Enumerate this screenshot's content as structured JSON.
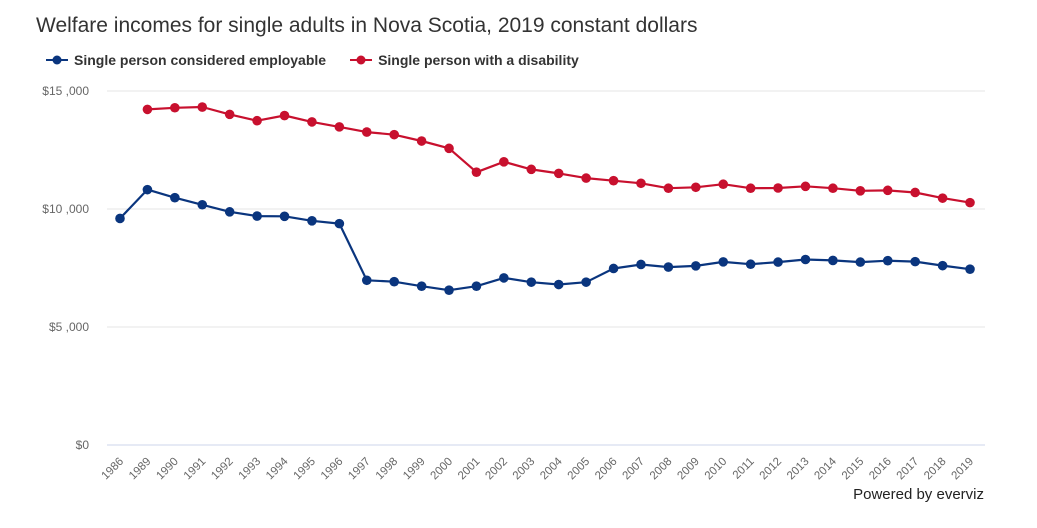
{
  "chart_data": {
    "type": "line",
    "title": "Welfare incomes for single adults in Nova Scotia, 2019 constant dollars",
    "xlabel": "",
    "ylabel": "",
    "categories": [
      "1986",
      "1989",
      "1990",
      "1991",
      "1992",
      "1993",
      "1994",
      "1995",
      "1996",
      "1997",
      "1998",
      "1999",
      "2000",
      "2001",
      "2002",
      "2003",
      "2004",
      "2005",
      "2006",
      "2007",
      "2008",
      "2009",
      "2010",
      "2011",
      "2012",
      "2013",
      "2014",
      "2015",
      "2016",
      "2017",
      "2018",
      "2019"
    ],
    "ylim": [
      0,
      15000
    ],
    "yticks": [
      0,
      5000,
      10000,
      15000
    ],
    "ytick_labels": [
      "$0",
      "$5 ,000",
      "$10 ,000",
      "$15 ,000"
    ],
    "grid": true,
    "legend_position": "top-left",
    "series": [
      {
        "name": "Single person considered employable",
        "color": "#0a357e",
        "values": [
          9600,
          10820,
          10480,
          10180,
          9880,
          9700,
          9690,
          9500,
          9380,
          6980,
          6920,
          6730,
          6560,
          6730,
          7080,
          6900,
          6800,
          6900,
          7480,
          7650,
          7540,
          7590,
          7760,
          7660,
          7750,
          7860,
          7820,
          7750,
          7810,
          7770,
          7600,
          7450
        ]
      },
      {
        "name": "Single person with a disability",
        "color": "#c8102e",
        "values": [
          null,
          14220,
          14290,
          14320,
          14010,
          13740,
          13960,
          13690,
          13480,
          13260,
          13150,
          12880,
          12570,
          11560,
          12000,
          11680,
          11510,
          11310,
          11200,
          11090,
          10880,
          10920,
          11050,
          10880,
          10890,
          10960,
          10880,
          10770,
          10790,
          10700,
          10460,
          10270
        ]
      }
    ]
  },
  "credit": "Powered by everviz",
  "colors": {
    "grid": "#e6e6e6",
    "axis": "#ccd6eb"
  }
}
